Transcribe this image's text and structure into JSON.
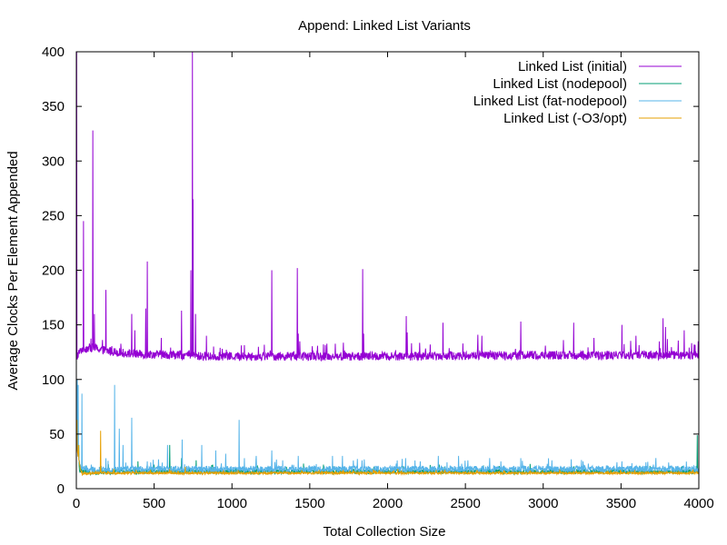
{
  "chart_data": {
    "type": "line",
    "title": "Append:  Linked List Variants",
    "xlabel": "Total Collection Size",
    "ylabel": "Average Clocks Per Element Appended",
    "xlim": [
      0,
      4000
    ],
    "ylim": [
      0,
      400
    ],
    "x_ticks": [
      0,
      500,
      1000,
      1500,
      2000,
      2500,
      3000,
      3500,
      4000
    ],
    "y_ticks": [
      0,
      50,
      100,
      150,
      200,
      250,
      300,
      350,
      400
    ],
    "x_tick_labels": [
      "0",
      "500",
      "1000",
      "1500",
      "2000",
      "2500",
      "3000",
      "3500",
      "4000"
    ],
    "y_tick_labels": [
      "0",
      "50",
      "100",
      "150",
      "200",
      "250",
      "300",
      "350",
      "400"
    ],
    "grid": false,
    "legend_position": "top-right",
    "series": [
      {
        "name": "Linked List (initial)",
        "color": "#9400d3",
        "baseline": [
          [
            0,
            115
          ],
          [
            10,
            122
          ],
          [
            40,
            127
          ],
          [
            100,
            128
          ],
          [
            200,
            125
          ],
          [
            300,
            123
          ],
          [
            400,
            122
          ],
          [
            700,
            121
          ],
          [
            800,
            120
          ],
          [
            1000,
            120
          ],
          [
            2000,
            120
          ],
          [
            3000,
            121
          ],
          [
            4000,
            121
          ]
        ],
        "noise": 4,
        "spikes": [
          [
            2,
            400
          ],
          [
            45,
            245
          ],
          [
            105,
            328
          ],
          [
            115,
            160
          ],
          [
            190,
            182
          ],
          [
            355,
            160
          ],
          [
            375,
            145
          ],
          [
            445,
            165
          ],
          [
            455,
            208
          ],
          [
            545,
            138
          ],
          [
            675,
            163
          ],
          [
            735,
            200
          ],
          [
            745,
            400
          ],
          [
            750,
            265
          ],
          [
            765,
            160
          ],
          [
            835,
            140
          ],
          [
            1255,
            200
          ],
          [
            1420,
            202
          ],
          [
            1425,
            142
          ],
          [
            1840,
            201
          ],
          [
            1845,
            142
          ],
          [
            2120,
            158
          ],
          [
            2125,
            143
          ],
          [
            2355,
            152
          ],
          [
            2580,
            141
          ],
          [
            2605,
            140
          ],
          [
            2855,
            153
          ],
          [
            3195,
            152
          ],
          [
            3325,
            138
          ],
          [
            3505,
            150
          ],
          [
            3595,
            140
          ],
          [
            3770,
            156
          ],
          [
            3785,
            148
          ],
          [
            3905,
            145
          ],
          [
            3970,
            132
          ]
        ]
      },
      {
        "name": "Linked List (nodepool)",
        "color": "#009e73",
        "baseline": [
          [
            0,
            85
          ],
          [
            8,
            40
          ],
          [
            20,
            16
          ],
          [
            100,
            14
          ],
          [
            300,
            15
          ],
          [
            1000,
            15
          ],
          [
            2000,
            15
          ],
          [
            3000,
            15
          ],
          [
            4000,
            15
          ]
        ],
        "noise": 2,
        "spikes": [
          [
            3,
            88
          ],
          [
            15,
            40
          ],
          [
            250,
            20
          ],
          [
            395,
            25
          ],
          [
            500,
            22
          ],
          [
            600,
            40
          ],
          [
            675,
            28
          ],
          [
            770,
            26
          ],
          [
            1350,
            20
          ],
          [
            2600,
            19
          ],
          [
            3990,
            49
          ]
        ]
      },
      {
        "name": "Linked List (fat-nodepool)",
        "color": "#56b4e9",
        "baseline": [
          [
            0,
            70
          ],
          [
            10,
            30
          ],
          [
            30,
            18
          ],
          [
            100,
            16
          ],
          [
            500,
            17
          ],
          [
            1000,
            17
          ],
          [
            2000,
            17
          ],
          [
            3000,
            17
          ],
          [
            4000,
            17
          ]
        ],
        "noise": 3,
        "spikes": [
          [
            5,
            100
          ],
          [
            12,
            95
          ],
          [
            35,
            87
          ],
          [
            95,
            22
          ],
          [
            245,
            95
          ],
          [
            275,
            55
          ],
          [
            300,
            40
          ],
          [
            355,
            65
          ],
          [
            455,
            25
          ],
          [
            585,
            40
          ],
          [
            680,
            45
          ],
          [
            805,
            40
          ],
          [
            895,
            35
          ],
          [
            960,
            32
          ],
          [
            1045,
            63
          ],
          [
            1080,
            28
          ],
          [
            1155,
            30
          ],
          [
            1255,
            35
          ],
          [
            1325,
            26
          ],
          [
            1425,
            30
          ],
          [
            1645,
            30
          ],
          [
            1710,
            30
          ],
          [
            1835,
            26
          ],
          [
            2115,
            28
          ],
          [
            2210,
            25
          ],
          [
            2325,
            30
          ],
          [
            2455,
            30
          ],
          [
            2515,
            26
          ],
          [
            2655,
            28
          ],
          [
            2855,
            28
          ],
          [
            3055,
            26
          ],
          [
            3255,
            25
          ],
          [
            3505,
            25
          ],
          [
            3805,
            24
          ]
        ]
      },
      {
        "name": "Linked List (-O3/opt)",
        "color": "#e69f00",
        "baseline": [
          [
            0,
            40
          ],
          [
            25,
            18
          ],
          [
            35,
            13
          ],
          [
            100,
            14
          ],
          [
            500,
            14
          ],
          [
            1000,
            14
          ],
          [
            2000,
            14
          ],
          [
            3000,
            14
          ],
          [
            4000,
            14
          ]
        ],
        "noise": 1,
        "spikes": [
          [
            4,
            63
          ],
          [
            14,
            40
          ],
          [
            155,
            53
          ],
          [
            240,
            18
          ],
          [
            600,
            18
          ],
          [
            700,
            20
          ],
          [
            1040,
            17
          ],
          [
            3985,
            16
          ]
        ]
      }
    ]
  }
}
